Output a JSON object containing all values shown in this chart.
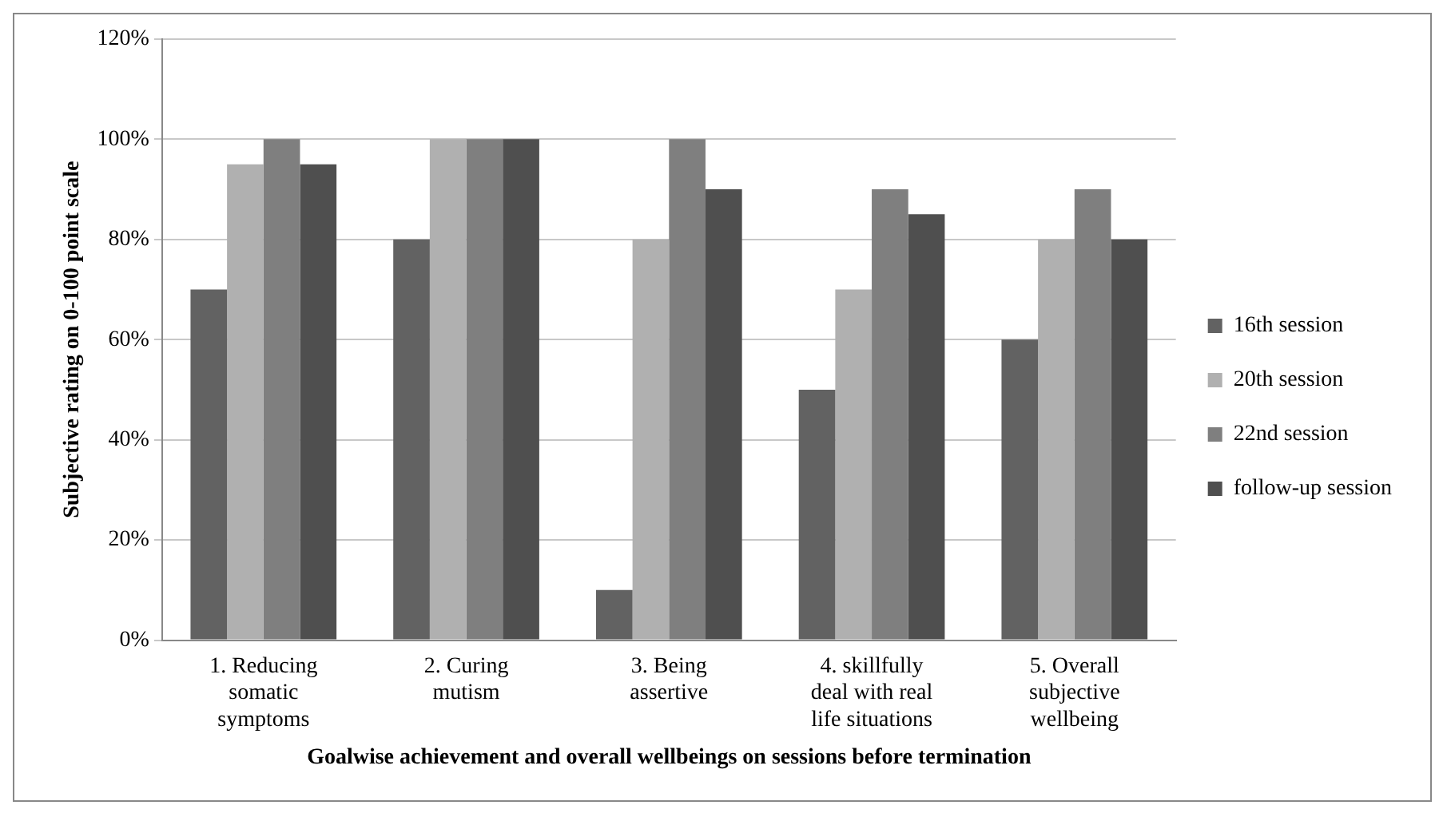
{
  "chart_data": {
    "type": "bar",
    "categories": [
      "1. Reducing somatic symptoms",
      "2. Curing mutism",
      "3. Being assertive",
      "4. skillfully deal with real life situations",
      "5. Overall subjective wellbeing"
    ],
    "series": [
      {
        "name": "16th session",
        "color": "#626262",
        "values": [
          70,
          80,
          10,
          50,
          60
        ]
      },
      {
        "name": "20th session",
        "color": "#b0b0b0",
        "values": [
          95,
          100,
          80,
          70,
          80
        ]
      },
      {
        "name": "22nd session",
        "color": "#7f7f7f",
        "values": [
          100,
          100,
          100,
          90,
          90
        ]
      },
      {
        "name": "follow-up session",
        "color": "#4f4f4f",
        "values": [
          95,
          100,
          90,
          85,
          80
        ]
      }
    ],
    "xlabel": "Goalwise achievement and overall wellbeings on sessions before termination",
    "ylabel": "Subjective rating on 0-100 point scale",
    "ylim": [
      0,
      120
    ],
    "yticks": [
      {
        "value": 0,
        "label": "0%"
      },
      {
        "value": 20,
        "label": "20%"
      },
      {
        "value": 40,
        "label": "40%"
      },
      {
        "value": 60,
        "label": "60%"
      },
      {
        "value": 80,
        "label": "80%"
      },
      {
        "value": 100,
        "label": "100%"
      },
      {
        "value": 120,
        "label": "120%"
      }
    ],
    "grid": "y",
    "legend": "right"
  }
}
